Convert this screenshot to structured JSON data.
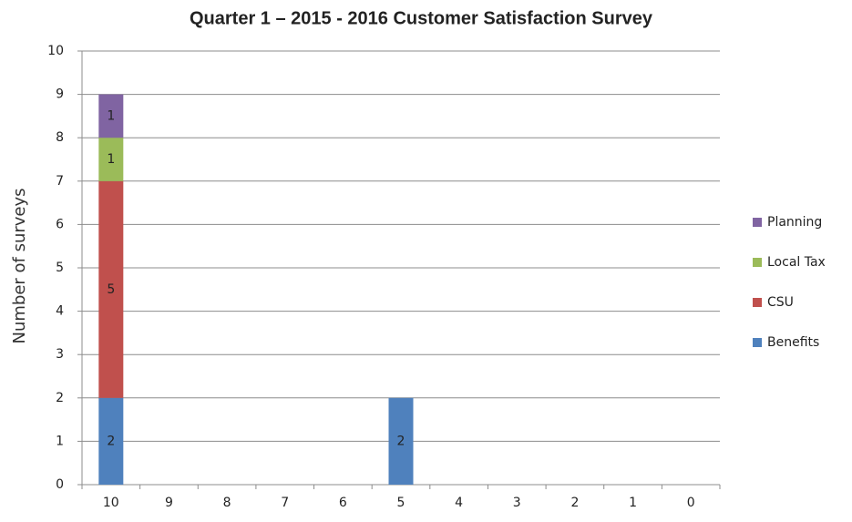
{
  "chart_data": {
    "type": "stacked_bar",
    "title": "Quarter 1 – 2015 - 2016 Customer Satisfaction Survey",
    "y_label": "Number of surveys",
    "categories": [
      "10",
      "9",
      "8",
      "7",
      "6",
      "5",
      "4",
      "3",
      "2",
      "1",
      "0"
    ],
    "series": [
      {
        "name": "Benefits",
        "color": "#4f81bd",
        "values": [
          2,
          0,
          0,
          0,
          0,
          2,
          0,
          0,
          0,
          0,
          0
        ]
      },
      {
        "name": "CSU",
        "color": "#c0504d",
        "values": [
          5,
          0,
          0,
          0,
          0,
          0,
          0,
          0,
          0,
          0,
          0
        ]
      },
      {
        "name": "Local Tax",
        "color": "#9bbb59",
        "values": [
          1,
          0,
          0,
          0,
          0,
          0,
          0,
          0,
          0,
          0,
          0
        ]
      },
      {
        "name": "Planning",
        "color": "#8064a2",
        "values": [
          1,
          0,
          0,
          0,
          0,
          0,
          0,
          0,
          0,
          0,
          0
        ]
      }
    ],
    "ylim": [
      0,
      10
    ],
    "yticks": [
      0,
      1,
      2,
      3,
      4,
      5,
      6,
      7,
      8,
      9,
      10
    ],
    "grid": true,
    "legend": "right"
  }
}
